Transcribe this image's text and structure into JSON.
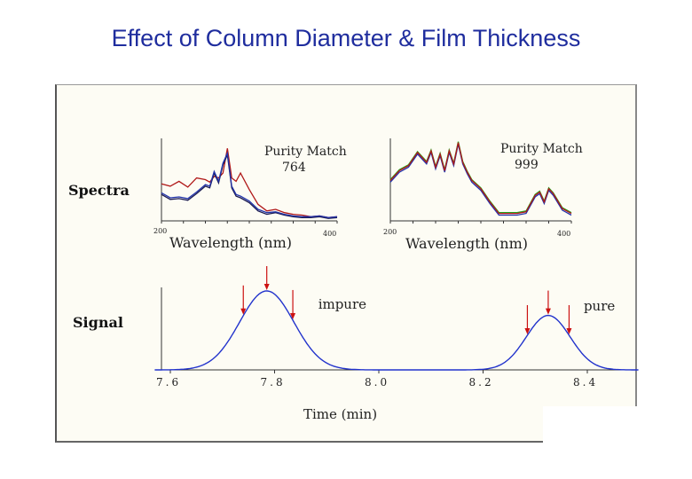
{
  "slide": {
    "title": "Effect of Column Diameter & Film Thickness"
  },
  "labels": {
    "spectra_row": "Spectra",
    "signal_row": "Signal"
  },
  "colors": {
    "title": "#1f2d9e",
    "figure_bg": "#fdfcf4",
    "signal_curve": "#2233cc",
    "marker_arrow": "#cc1111",
    "spectrum_red": "#b01818",
    "spectrum_dark": "#1a1a50",
    "spectrum_green": "#22aa22",
    "spectrum_blue": "#2233aa"
  },
  "chart_data": [
    {
      "type": "line",
      "panel": "spectrum-left",
      "annotation": [
        "Purity Match",
        "764"
      ],
      "xlabel": "Wavelength (nm)",
      "xlim": [
        200,
        400
      ],
      "x_ticks": [
        "200",
        "400"
      ],
      "series": [
        {
          "color": "#b01818",
          "x": [
            200,
            210,
            220,
            230,
            240,
            250,
            255,
            260,
            265,
            270,
            275,
            280,
            285,
            290,
            300,
            310,
            320,
            330,
            340,
            350,
            360,
            370,
            380,
            390,
            400
          ],
          "values": [
            0.45,
            0.42,
            0.48,
            0.41,
            0.52,
            0.5,
            0.47,
            0.54,
            0.52,
            0.58,
            0.88,
            0.52,
            0.48,
            0.58,
            0.38,
            0.2,
            0.12,
            0.14,
            0.1,
            0.08,
            0.07,
            0.05,
            0.06,
            0.04,
            0.05
          ]
        },
        {
          "color": "#1a1a50",
          "x": [
            200,
            210,
            220,
            230,
            240,
            250,
            255,
            260,
            265,
            270,
            275,
            280,
            285,
            290,
            300,
            310,
            320,
            330,
            340,
            350,
            360,
            370,
            380,
            390,
            400
          ],
          "values": [
            0.32,
            0.26,
            0.27,
            0.25,
            0.33,
            0.42,
            0.4,
            0.58,
            0.46,
            0.68,
            0.8,
            0.4,
            0.3,
            0.28,
            0.22,
            0.12,
            0.08,
            0.1,
            0.07,
            0.05,
            0.04,
            0.04,
            0.05,
            0.03,
            0.04
          ]
        },
        {
          "color": "#2233aa",
          "x": [
            200,
            210,
            220,
            230,
            240,
            250,
            255,
            260,
            265,
            270,
            275,
            280,
            285,
            290,
            300,
            310,
            320,
            330,
            340,
            350,
            360,
            370,
            380,
            390,
            400
          ],
          "values": [
            0.34,
            0.28,
            0.29,
            0.27,
            0.35,
            0.44,
            0.42,
            0.6,
            0.48,
            0.7,
            0.82,
            0.42,
            0.32,
            0.3,
            0.24,
            0.14,
            0.1,
            0.11,
            0.08,
            0.06,
            0.05,
            0.05,
            0.06,
            0.04,
            0.05
          ]
        }
      ]
    },
    {
      "type": "line",
      "panel": "spectrum-right",
      "annotation": [
        "Purity Match",
        "999"
      ],
      "xlabel": "Wavelength (nm)",
      "xlim": [
        200,
        400
      ],
      "x_ticks": [
        "200",
        "400"
      ],
      "series": [
        {
          "color": "#22aa22",
          "x": [
            200,
            210,
            220,
            230,
            240,
            245,
            250,
            255,
            260,
            265,
            270,
            275,
            280,
            285,
            290,
            300,
            310,
            320,
            330,
            340,
            350,
            360,
            365,
            370,
            375,
            380,
            390,
            400
          ],
          "values": [
            0.5,
            0.62,
            0.68,
            0.84,
            0.72,
            0.86,
            0.66,
            0.82,
            0.62,
            0.86,
            0.7,
            0.96,
            0.72,
            0.6,
            0.5,
            0.4,
            0.24,
            0.1,
            0.1,
            0.1,
            0.12,
            0.32,
            0.36,
            0.24,
            0.4,
            0.34,
            0.16,
            0.1
          ]
        },
        {
          "color": "#2233aa",
          "x": [
            200,
            210,
            220,
            230,
            240,
            245,
            250,
            255,
            260,
            265,
            270,
            275,
            280,
            285,
            290,
            300,
            310,
            320,
            330,
            340,
            350,
            360,
            365,
            370,
            375,
            380,
            390,
            400
          ],
          "values": [
            0.47,
            0.59,
            0.65,
            0.81,
            0.69,
            0.83,
            0.63,
            0.79,
            0.59,
            0.83,
            0.67,
            0.93,
            0.69,
            0.57,
            0.47,
            0.37,
            0.21,
            0.07,
            0.07,
            0.07,
            0.09,
            0.29,
            0.33,
            0.21,
            0.37,
            0.31,
            0.13,
            0.07
          ]
        },
        {
          "color": "#b01818",
          "x": [
            200,
            210,
            220,
            230,
            240,
            245,
            250,
            255,
            260,
            265,
            270,
            275,
            280,
            285,
            290,
            300,
            310,
            320,
            330,
            340,
            350,
            360,
            365,
            370,
            375,
            380,
            390,
            400
          ],
          "values": [
            0.49,
            0.61,
            0.67,
            0.83,
            0.71,
            0.85,
            0.65,
            0.81,
            0.61,
            0.85,
            0.69,
            0.95,
            0.71,
            0.59,
            0.49,
            0.39,
            0.23,
            0.09,
            0.09,
            0.09,
            0.11,
            0.31,
            0.35,
            0.23,
            0.39,
            0.33,
            0.15,
            0.09
          ]
        }
      ]
    },
    {
      "type": "line",
      "panel": "signal",
      "xlabel": "Time (min)",
      "xlim": [
        7.6,
        8.5
      ],
      "x_ticks": [
        "7.6",
        "7.8",
        "8.0",
        "8.2",
        "8.4"
      ],
      "tick_values": [
        7.6,
        7.8,
        8.0,
        8.2,
        8.4
      ],
      "peaks": [
        {
          "label": "impure",
          "center": 7.785,
          "width": 0.052,
          "height": 1.0,
          "markers": [
            7.74,
            7.785,
            7.835
          ]
        },
        {
          "label": "pure",
          "center": 8.325,
          "width": 0.042,
          "height": 0.69,
          "markers": [
            8.285,
            8.325,
            8.365
          ]
        }
      ]
    }
  ]
}
